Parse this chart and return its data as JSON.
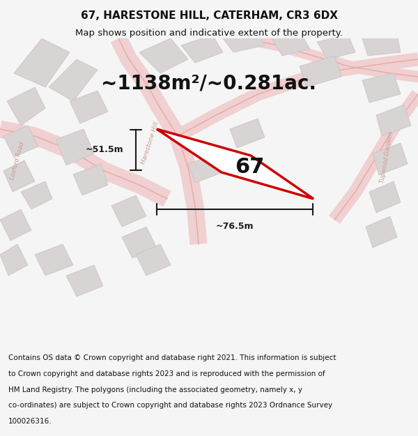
{
  "title": "67, HARESTONE HILL, CATERHAM, CR3 6DX",
  "subtitle": "Map shows position and indicative extent of the property.",
  "area_text": "~1138m²/~0.281ac.",
  "label_67": "67",
  "dim_height": "~51.5m",
  "dim_width": "~76.5m",
  "road_label_1": "Harestone Hill",
  "road_label_2": "Loxford Road",
  "road_label_3": "Tupwood Gardens",
  "footer": "Contains OS data © Crown copyright and database right 2021. This information is subject to Crown copyright and database rights 2023 and is reproduced with the permission of HM Land Registry. The polygons (including the associated geometry, namely x, y co-ordinates) are subject to Crown copyright and database rights 2023 Ordnance Survey 100026316.",
  "bg_color": "#f5f5f5",
  "map_bg": "#f0eeee",
  "footer_bg": "#ffffff",
  "red_color": "#e8413a",
  "plot_color": "#ffffff",
  "plot_outline": "#cc0000",
  "building_color": "#d8d8d8",
  "road_color": "#e8b8b8",
  "dim_color": "#1a1a1a",
  "title_fontsize": 11,
  "subtitle_fontsize": 9.5,
  "area_fontsize": 20,
  "label_fontsize": 22,
  "footer_fontsize": 7.5
}
